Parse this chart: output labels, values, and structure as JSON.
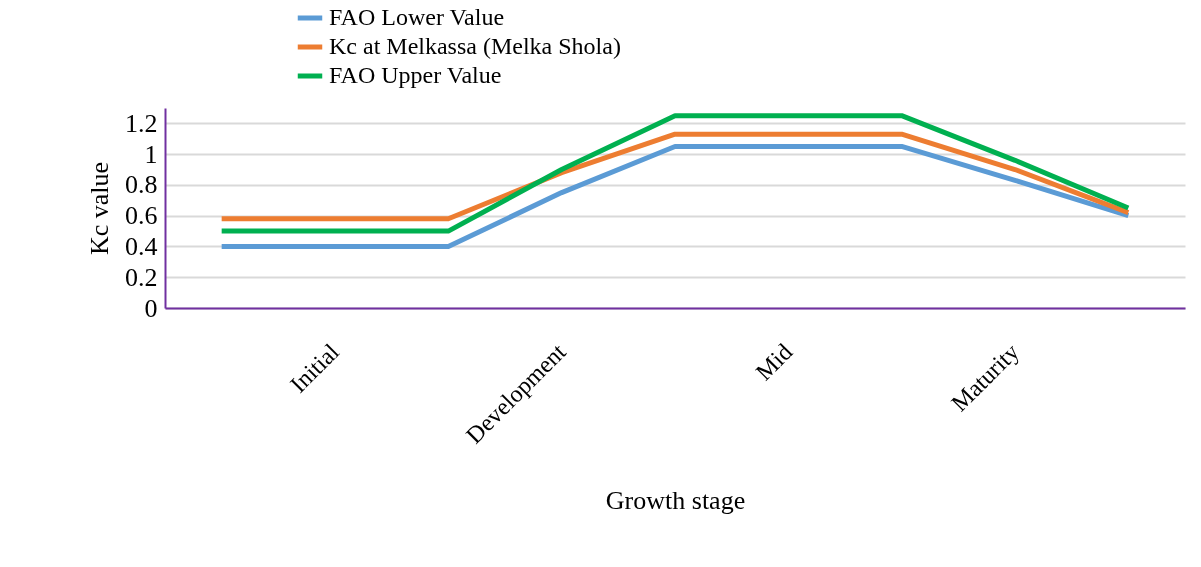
{
  "chart_data": {
    "type": "line",
    "xlabel": "Growth stage",
    "ylabel": "Kc value",
    "categories": [
      null,
      "Initial",
      null,
      "Development",
      null,
      "Mid",
      null,
      "Maturity",
      null
    ],
    "series": [
      {
        "name": "FAO Lower Value",
        "color": "#5b9bd5",
        "values": [
          0.4,
          0.4,
          0.4,
          0.75,
          1.05,
          1.05,
          1.05,
          0.83,
          0.6
        ]
      },
      {
        "name": "Kc at Melkassa (Melka Shola)",
        "color": "#ed7d31",
        "values": [
          0.58,
          0.58,
          0.58,
          0.88,
          1.13,
          1.13,
          1.13,
          0.9,
          0.62
        ]
      },
      {
        "name": "FAO Upper Value",
        "color": "#00b050",
        "values": [
          0.5,
          0.5,
          0.5,
          0.9,
          1.25,
          1.25,
          1.25,
          0.96,
          0.65
        ]
      }
    ],
    "ylim": [
      0,
      1.3
    ],
    "yticks": [
      0,
      0.2,
      0.4,
      0.6,
      0.8,
      1,
      1.2
    ],
    "grid": "y",
    "legend": "top",
    "marker": "none",
    "line_style": "solid"
  }
}
